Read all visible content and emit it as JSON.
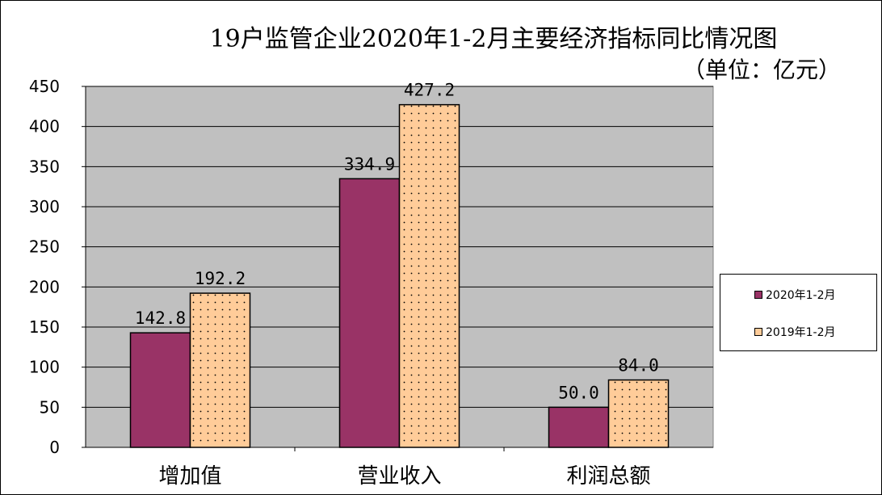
{
  "chart_data": {
    "type": "bar",
    "title": "19户监管企业2020年1-2月主要经济指标同比情况图",
    "subtitle": "（单位：亿元）",
    "categories": [
      "增加值",
      "营业收入",
      "利润总额"
    ],
    "series": [
      {
        "name": "2020年1-2月",
        "values": [
          142.8,
          334.9,
          50.0
        ],
        "labels": [
          "142.8",
          "334.9",
          "50.0"
        ],
        "color": "#993366"
      },
      {
        "name": "2019年1-2月",
        "values": [
          192.2,
          427.2,
          84.0
        ],
        "labels": [
          "192.2",
          "427.2",
          "84.0"
        ],
        "color": "#FFCC99"
      }
    ],
    "yticks": [
      "0",
      "50",
      "100",
      "150",
      "200",
      "250",
      "300",
      "350",
      "400",
      "450"
    ],
    "ylim": [
      0,
      450
    ],
    "grid": true,
    "plot_background": "#C0C0C0",
    "legend_position": "right"
  }
}
